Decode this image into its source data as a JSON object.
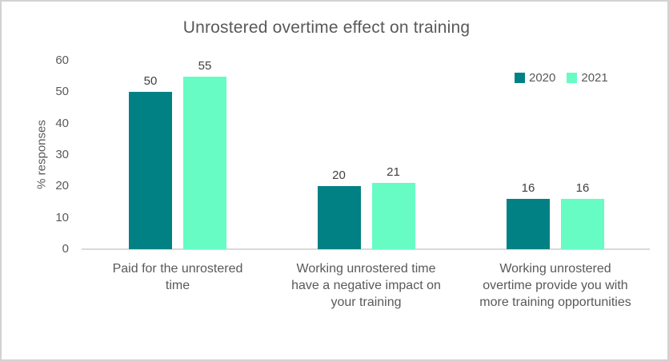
{
  "chart_data": {
    "type": "bar",
    "title": "Unrostered overtime effect on training",
    "ylabel": "% responses",
    "xlabel": "",
    "ylim": [
      0,
      60
    ],
    "yticks": [
      0,
      10,
      20,
      30,
      40,
      50,
      60
    ],
    "grid": false,
    "data_labels": true,
    "legend_position": "top-right",
    "categories": [
      "Paid for the unrostered time",
      "Working unrostered time have a negative impact on your training",
      "Working unrostered overtime provide you with more training opportunities"
    ],
    "category_label_lines": [
      [
        "Paid for the unrostered",
        "time"
      ],
      [
        "Working unrostered time",
        "have a negative impact on",
        "your training"
      ],
      [
        "Working unrostered",
        "overtime provide you with",
        "more training opportunities"
      ]
    ],
    "series": [
      {
        "name": "2020",
        "color": "#028184",
        "values": [
          50,
          20,
          16
        ]
      },
      {
        "name": "2021",
        "color": "#66fcc4",
        "values": [
          55,
          21,
          16
        ]
      }
    ]
  },
  "colors": {
    "title_text": "#595959",
    "axis_text": "#595959",
    "value_label_text": "#404040",
    "baseline": "#d9d9d9",
    "frame_border": "#d2d2d2"
  }
}
